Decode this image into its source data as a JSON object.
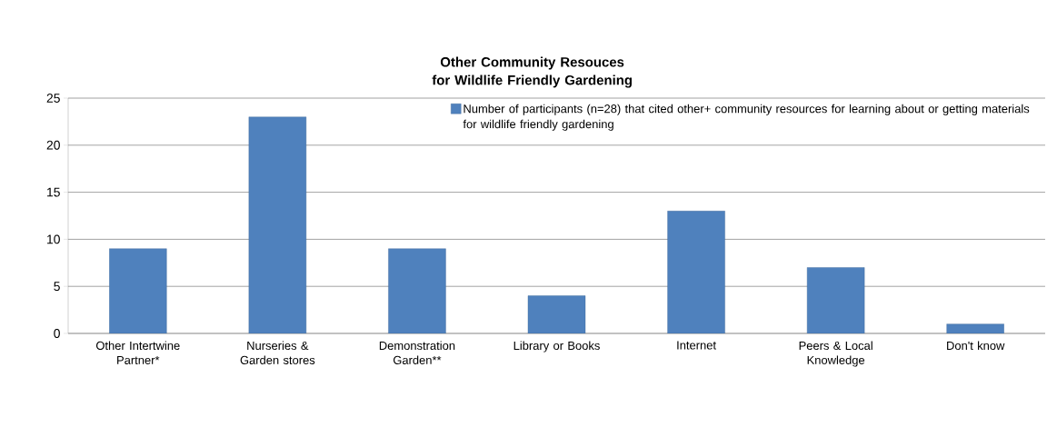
{
  "chart_data": {
    "type": "bar",
    "title": "Other Community Resouces for Wildlife Friendly Gardening",
    "categories": [
      "Other Intertwine Partner*",
      "Nurseries & Garden stores",
      "Demonstration Garden**",
      "Library or Books",
      "Internet",
      "Peers & Local Knowledge",
      "Don't know"
    ],
    "series": [
      {
        "name": "Number of participants (n=28) that cited other+ community resources for learning about or getting materials for wildlife friendly gardening",
        "color": "#4f81bd",
        "values": [
          9,
          23,
          9,
          4,
          13,
          7,
          1
        ]
      }
    ],
    "ylim": [
      0,
      25
    ],
    "yticks": [
      0,
      5,
      10,
      15,
      20,
      25
    ],
    "grid": "y",
    "legend": "top right"
  }
}
